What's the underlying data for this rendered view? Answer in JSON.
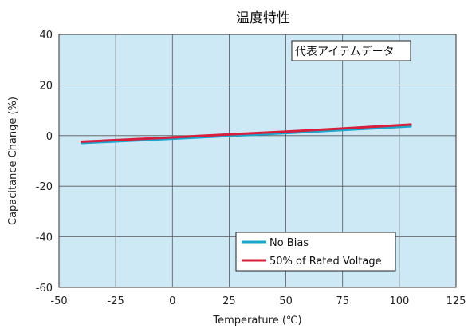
{
  "chart_data": {
    "type": "line",
    "title": "温度特性",
    "xlabel": "Temperature (℃)",
    "ylabel": "Capacitance Change (%)",
    "xlim": [
      -50,
      125
    ],
    "ylim": [
      -60,
      40
    ],
    "xticks": [
      -50,
      -25,
      0,
      25,
      50,
      75,
      100,
      125
    ],
    "yticks": [
      -60,
      -40,
      -20,
      0,
      20,
      40
    ],
    "grid": true,
    "legend_position": "bottom-right",
    "annotation": "代表アイテムデータ",
    "series": [
      {
        "name": "No Bias",
        "color": "#19a6cf",
        "x": [
          -40,
          0,
          25,
          50,
          75,
          105
        ],
        "y": [
          -2.9,
          -1.2,
          -0.1,
          1.0,
          2.2,
          3.7
        ]
      },
      {
        "name": "50% of Rated Voltage",
        "color": "#d81e3a",
        "x": [
          -40,
          0,
          25,
          50,
          75,
          105
        ],
        "y": [
          -2.4,
          -0.7,
          0.5,
          1.6,
          2.8,
          4.4
        ]
      }
    ]
  },
  "colors": {
    "plot_background": "#cde9f6",
    "grid": "#555555",
    "frame": "#333333"
  }
}
